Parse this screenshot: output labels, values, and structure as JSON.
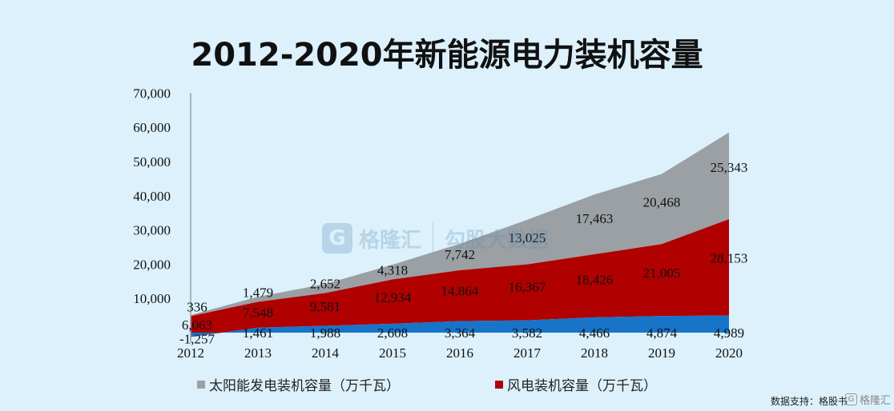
{
  "title": "2012-2020年新能源电力装机容量",
  "watermark": {
    "logo_letter": "G",
    "brand": "格隆汇",
    "site": "勾股大数据"
  },
  "source": "数据支持：格股书",
  "corner_logo": {
    "letter": "G",
    "text": "格隆汇"
  },
  "colors": {
    "solar": "#9aa0a4",
    "wind": "#b00000",
    "third": "#1874c8",
    "background": "#dcf1fb"
  },
  "chart_data": {
    "type": "area",
    "title": "2012-2020年新能源电力装机容量",
    "xlabel": "",
    "ylabel": "",
    "x": [
      "2012",
      "2013",
      "2014",
      "2015",
      "2016",
      "2017",
      "2018",
      "2019",
      "2020"
    ],
    "ylim": [
      -3000,
      70000
    ],
    "yticks": [
      10000,
      20000,
      30000,
      40000,
      50000,
      60000,
      70000
    ],
    "ytick_labels": [
      "10,000",
      "20,000",
      "30,000",
      "40,000",
      "50,000",
      "60,000",
      "70,000"
    ],
    "stacked": true,
    "grid": false,
    "legend_position": "bottom",
    "series": [
      {
        "key": "third",
        "name": "",
        "values": [
          -1257,
          1461,
          1988,
          2608,
          3364,
          3582,
          4466,
          4874,
          4989
        ],
        "labels": [
          "-1,257",
          "1,461",
          "1,988",
          "2,608",
          "3,364",
          "3,582",
          "4,466",
          "4,874",
          "4,989"
        ]
      },
      {
        "key": "wind",
        "name": "风电装机容量（万千瓦）",
        "values": [
          6063,
          7548,
          9581,
          12934,
          14864,
          16367,
          18426,
          21005,
          28153
        ],
        "labels": [
          "6,063",
          "7,548",
          "9,581",
          "12,934",
          "14,864",
          "16,367",
          "18,426",
          "21,005",
          "28,153"
        ]
      },
      {
        "key": "solar",
        "name": "太阳能发电装机容量（万千瓦）",
        "values": [
          336,
          1479,
          2652,
          4318,
          7742,
          13025,
          17463,
          20468,
          25343
        ],
        "labels": [
          "336",
          "1,479",
          "2,652",
          "4,318",
          "7,742",
          "13,025",
          "17,463",
          "20,468",
          "25,343"
        ]
      }
    ]
  }
}
